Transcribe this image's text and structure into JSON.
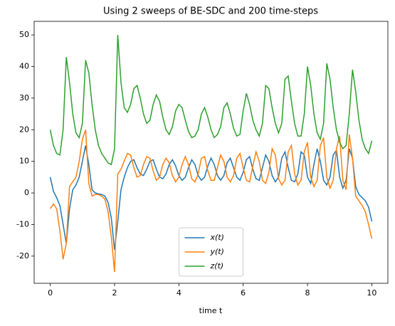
{
  "chart_data": {
    "type": "line",
    "title": "Using 2 sweeps of BE-SDC and 200 time-steps",
    "x_label": "time t",
    "x": [
      0,
      0.1,
      0.2,
      0.3,
      0.4,
      0.5,
      0.6,
      0.7,
      0.8,
      0.9,
      1,
      1.1,
      1.2,
      1.3,
      1.4,
      1.5,
      1.6,
      1.7,
      1.8,
      1.9,
      2,
      2.1,
      2.2,
      2.3,
      2.4,
      2.5,
      2.6,
      2.7,
      2.8,
      2.9,
      3,
      3.1,
      3.2,
      3.3,
      3.4,
      3.5,
      3.6,
      3.7,
      3.8,
      3.9,
      4,
      4.1,
      4.2,
      4.3,
      4.4,
      4.5,
      4.6,
      4.7,
      4.8,
      4.9,
      5,
      5.1,
      5.2,
      5.3,
      5.4,
      5.5,
      5.6,
      5.7,
      5.8,
      5.9,
      6,
      6.1,
      6.2,
      6.3,
      6.4,
      6.5,
      6.6,
      6.7,
      6.8,
      6.9,
      7,
      7.1,
      7.2,
      7.3,
      7.4,
      7.5,
      7.6,
      7.7,
      7.8,
      7.9,
      8,
      8.1,
      8.2,
      8.3,
      8.4,
      8.5,
      8.6,
      8.7,
      8.8,
      8.9,
      9,
      9.1,
      9.2,
      9.3,
      9.4,
      9.5,
      9.6,
      9.7,
      9.8,
      9.9,
      10
    ],
    "series": [
      {
        "name": "x(t)",
        "color": "#1f77b4",
        "values": [
          5,
          0.5,
          -1.5,
          -4,
          -10,
          -16,
          -5,
          1,
          2.5,
          5,
          10,
          15,
          9,
          1,
          0,
          -0.3,
          -0.5,
          -1,
          -3,
          -8,
          -18,
          -9,
          1,
          5,
          8,
          10,
          10.5,
          8,
          6,
          5.5,
          7.5,
          10,
          10.5,
          7.5,
          5,
          4.5,
          6,
          9,
          10.5,
          8.5,
          5.5,
          4,
          5,
          8,
          10.5,
          9,
          5.5,
          4,
          5,
          8.5,
          11,
          9,
          5.5,
          4,
          5.5,
          9.5,
          11,
          8,
          5,
          4,
          6.5,
          10.5,
          11.5,
          7.5,
          4.5,
          4,
          8,
          12,
          10,
          5.5,
          3.5,
          5,
          11,
          13,
          8,
          4,
          3.5,
          6,
          13,
          12,
          5,
          3,
          9,
          14,
          10,
          4,
          2.5,
          5,
          12,
          13.5,
          5,
          1.5,
          4,
          14,
          11,
          2,
          -0.5,
          -1.5,
          -2.5,
          -4.5,
          -9
        ]
      },
      {
        "name": "y(t)",
        "color": "#ff7f0e",
        "values": [
          -5,
          -3.5,
          -5,
          -12,
          -21,
          -16,
          2,
          3.5,
          5,
          10,
          17,
          20,
          3,
          -1,
          -0.5,
          -0.5,
          -1,
          -2,
          -6,
          -14,
          -25,
          6,
          7.5,
          10,
          12.5,
          12,
          8,
          5,
          5.5,
          9,
          11.5,
          11,
          7,
          4,
          5,
          9,
          11,
          9.5,
          5.5,
          3.5,
          5,
          9,
          11.5,
          9,
          4.5,
          3.5,
          6,
          11,
          11.5,
          7,
          4,
          4,
          8,
          12,
          10,
          5,
          3.5,
          5.5,
          11,
          12.5,
          8,
          4,
          3.5,
          8.5,
          13,
          10,
          4,
          3,
          6.5,
          14,
          12,
          4.5,
          2.5,
          4,
          13,
          15,
          6,
          2.5,
          4,
          13,
          16,
          5,
          2,
          4,
          15,
          17.5,
          5,
          1.5,
          4,
          14,
          18,
          4,
          1,
          18.5,
          11,
          -1,
          -2.5,
          -4,
          -6,
          -10,
          -14.5
        ]
      },
      {
        "name": "z(t)",
        "color": "#2ca02c",
        "values": [
          20,
          15,
          12.5,
          12,
          20,
          43,
          35,
          25,
          19,
          17.5,
          22,
          42,
          38,
          28,
          20,
          15,
          12.5,
          11,
          9.5,
          9,
          14,
          50,
          35,
          27,
          25.5,
          28,
          33,
          34,
          30,
          25,
          22,
          23,
          28,
          31,
          29,
          24,
          20,
          18.5,
          21,
          26,
          28,
          27,
          23,
          19.5,
          17.5,
          18,
          20,
          25,
          27,
          24,
          20,
          17.5,
          18.5,
          21,
          27,
          28.5,
          25,
          20.5,
          18,
          18.5,
          26,
          31.5,
          28,
          23,
          20,
          18,
          22,
          34,
          33,
          27,
          22,
          19,
          22,
          36,
          37,
          29,
          22,
          18,
          18,
          25,
          40,
          34,
          25,
          19,
          17,
          22,
          41,
          36,
          27,
          20,
          16,
          14,
          15,
          25,
          39,
          32,
          23,
          17,
          14,
          12.5,
          16.5
        ]
      }
    ],
    "xlim": [
      -0.5,
      10.5
    ],
    "ylim": [
      -28.6,
      54.3
    ],
    "xticks": [
      0,
      2,
      4,
      6,
      8,
      10
    ],
    "yticks": [
      -20,
      -10,
      0,
      10,
      20,
      30,
      40,
      50
    ],
    "legend": "lower center"
  }
}
